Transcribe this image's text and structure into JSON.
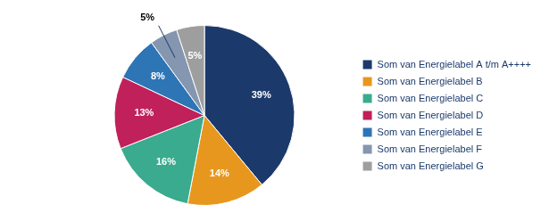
{
  "chart_data": {
    "type": "pie",
    "categories": [
      "Som van Energielabel A t/m A++++",
      "Som van Energielabel B",
      "Som van Energielabel C",
      "Som van Energielabel D",
      "Som van Energielabel E",
      "Som van Energielabel F",
      "Som van Energielabel G"
    ],
    "values": [
      39,
      14,
      16,
      13,
      8,
      5,
      5
    ],
    "value_labels": [
      "39%",
      "14%",
      "16%",
      "13%",
      "8%",
      "5%",
      "5%"
    ],
    "data_labels": true,
    "colors": [
      "#1b3a6b",
      "#e8971e",
      "#3aab8e",
      "#c0215a",
      "#2e75b6",
      "#8496b0",
      "#9e9e9e"
    ],
    "annotations": [
      {
        "text": "5%",
        "category": "Som van Energielabel F"
      }
    ],
    "legend": "right"
  }
}
